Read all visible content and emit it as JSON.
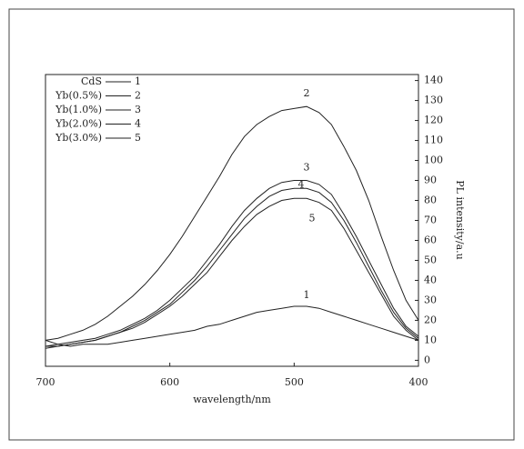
{
  "chart_data": {
    "type": "line",
    "x_label": "wavelength/nm",
    "y_label": "PL intensity/a.u",
    "x": [
      400,
      410,
      420,
      430,
      440,
      450,
      460,
      470,
      480,
      490,
      500,
      510,
      520,
      530,
      540,
      550,
      560,
      570,
      580,
      590,
      600,
      610,
      620,
      630,
      640,
      650,
      660,
      670,
      680,
      690,
      700
    ],
    "series": [
      {
        "name": "CdS",
        "label": "1",
        "color": "#222222",
        "values": [
          10,
          12,
          14,
          16,
          18,
          20,
          22,
          24,
          26,
          27,
          27,
          26,
          25,
          24,
          22,
          20,
          18,
          17,
          15,
          14,
          13,
          12,
          11,
          10,
          9,
          8,
          8,
          8,
          7,
          8,
          10
        ]
      },
      {
        "name": "Yb(0.5%)",
        "label": "2",
        "color": "#222222",
        "values": [
          20,
          30,
          45,
          62,
          80,
          95,
          107,
          118,
          124,
          127,
          126,
          125,
          122,
          118,
          112,
          103,
          92,
          82,
          72,
          62,
          53,
          45,
          38,
          32,
          27,
          22,
          18,
          15,
          13,
          11,
          10
        ]
      },
      {
        "name": "Yb(1.0%)",
        "label": "3",
        "color": "#222222",
        "values": [
          12,
          17,
          26,
          38,
          50,
          62,
          73,
          83,
          88,
          90,
          90,
          89,
          86,
          81,
          75,
          67,
          58,
          50,
          42,
          36,
          30,
          25,
          21,
          18,
          15,
          13,
          11,
          10,
          9,
          8,
          7
        ]
      },
      {
        "name": "Yb(2.0%)",
        "label": "4",
        "color": "#222222",
        "values": [
          11,
          16,
          24,
          35,
          47,
          59,
          70,
          79,
          84,
          86,
          86,
          85,
          82,
          77,
          71,
          63,
          55,
          47,
          40,
          34,
          28,
          24,
          20,
          17,
          14,
          12,
          10,
          9,
          8,
          7,
          7
        ]
      },
      {
        "name": "Yb(3.0%)",
        "label": "5",
        "color": "#222222",
        "values": [
          10,
          15,
          22,
          33,
          44,
          55,
          66,
          75,
          79,
          81,
          81,
          80,
          77,
          73,
          67,
          60,
          52,
          44,
          38,
          32,
          27,
          23,
          19,
          16,
          14,
          12,
          10,
          9,
          8,
          7,
          6
        ]
      }
    ],
    "xlim": [
      700,
      400
    ],
    "xticks": [
      700,
      600,
      500,
      400
    ],
    "ylim": [
      -3,
      143
    ],
    "yticks": [
      0,
      10,
      20,
      30,
      40,
      50,
      60,
      70,
      80,
      90,
      100,
      110,
      120,
      130,
      140
    ],
    "legend": "upper-left"
  }
}
